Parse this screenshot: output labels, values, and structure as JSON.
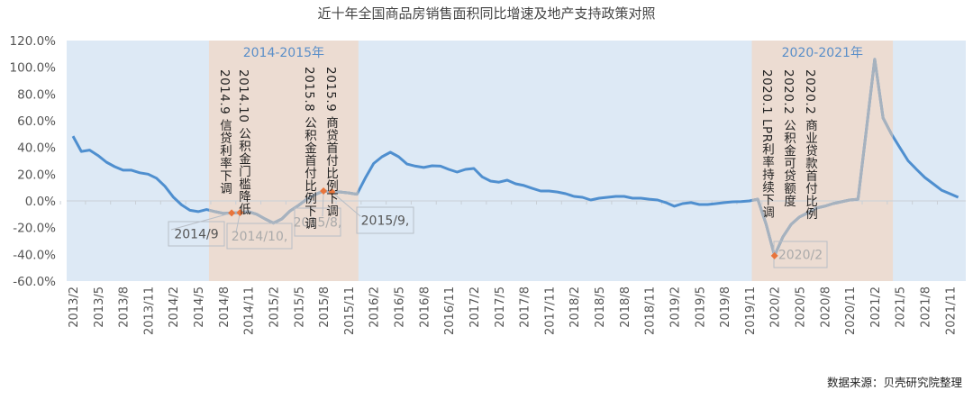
{
  "chart_data": {
    "type": "line",
    "title": "近十年全国商品房销售面积同比增速及地产支持政策对照",
    "ylim": [
      -60,
      120
    ],
    "ytick_step": 20,
    "ytick_format": "percent_1dp",
    "grid": false,
    "x": [
      "2013/2",
      "2013/3",
      "2013/4",
      "2013/5",
      "2013/6",
      "2013/7",
      "2013/8",
      "2013/9",
      "2013/10",
      "2013/11",
      "2013/12",
      "2014/1",
      "2014/2",
      "2014/3",
      "2014/4",
      "2014/5",
      "2014/6",
      "2014/7",
      "2014/8",
      "2014/9",
      "2014/10",
      "2014/11",
      "2014/12",
      "2015/1",
      "2015/2",
      "2015/3",
      "2015/4",
      "2015/5",
      "2015/6",
      "2015/7",
      "2015/8",
      "2015/9",
      "2015/10",
      "2015/11",
      "2015/12",
      "2016/1",
      "2016/2",
      "2016/3",
      "2016/4",
      "2016/5",
      "2016/6",
      "2016/7",
      "2016/8",
      "2016/9",
      "2016/10",
      "2016/11",
      "2016/12",
      "2017/1",
      "2017/2",
      "2017/3",
      "2017/4",
      "2017/5",
      "2017/6",
      "2017/7",
      "2017/8",
      "2017/9",
      "2017/10",
      "2017/11",
      "2017/12",
      "2018/1",
      "2018/2",
      "2018/3",
      "2018/4",
      "2018/5",
      "2018/6",
      "2018/7",
      "2018/8",
      "2018/9",
      "2018/10",
      "2018/11",
      "2018/12",
      "2019/1",
      "2019/2",
      "2019/3",
      "2019/4",
      "2019/5",
      "2019/6",
      "2019/7",
      "2019/8",
      "2019/9",
      "2019/10",
      "2019/11",
      "2019/12",
      "2020/1",
      "2020/2",
      "2020/3",
      "2020/4",
      "2020/5",
      "2020/6",
      "2020/7",
      "2020/8",
      "2020/9",
      "2020/10",
      "2020/11",
      "2020/12",
      "2021/1",
      "2021/2",
      "2021/3",
      "2021/4",
      "2021/5",
      "2021/6",
      "2021/7",
      "2021/8",
      "2021/9",
      "2021/10",
      "2021/11",
      "2021/12"
    ],
    "xtick_every": 3,
    "series": [
      {
        "color": "#4f8fcf",
        "values": [
          48.5,
          37,
          38,
          34,
          29,
          25.6,
          23,
          23,
          21,
          20,
          17,
          11,
          3,
          -3,
          -7,
          -8,
          -6.5,
          -8,
          -9.4,
          -9,
          -8.8,
          -8,
          -10,
          -13.5,
          -16.6,
          -13.5,
          -7.5,
          -3.4,
          1.3,
          4.7,
          7.4,
          6.7,
          6.7,
          6,
          5,
          17,
          28,
          33,
          36.4,
          33,
          27.6,
          26,
          25,
          26.3,
          26,
          23.6,
          21.6,
          23.6,
          24.3,
          18,
          14.8,
          14,
          15.5,
          12.8,
          11.5,
          9.4,
          7.4,
          7.4,
          6.7,
          5.4,
          3.4,
          2.7,
          0.7,
          2,
          2.7,
          3.4,
          3.4,
          2,
          2,
          1.3,
          0.7,
          -1.3,
          -4,
          -2,
          -1.3,
          -2.7,
          -2.7,
          -2,
          -1.3,
          -0.7,
          -0.5,
          0,
          1.3,
          -17.5,
          -41,
          -27,
          -17.5,
          -12,
          -8.8,
          -5.4,
          -4,
          -2,
          -0.7,
          0.7,
          1.3,
          53,
          106,
          62,
          50,
          40,
          30,
          23.6,
          17.5,
          12.8,
          8,
          5.4,
          2.7
        ]
      }
    ],
    "highlight_color": "#a7b2be",
    "bands": [
      {
        "label": "2014-2015年",
        "from": "2014/7",
        "to": "2015/12",
        "color": "#ecdcd2"
      },
      {
        "label": "2020-2021年",
        "from": "2019/12",
        "to": "2021/4",
        "color": "#ecdcd2"
      }
    ],
    "plot_background": "#dde9f5",
    "markers": [
      {
        "x": "2014/9",
        "label": "2014/9",
        "label_color": "#555"
      },
      {
        "x": "2014/10",
        "label": "2014/10,",
        "label_color": "#aaa"
      },
      {
        "x": "2015/8",
        "label": "2015/8,",
        "label_color": "#aaa"
      },
      {
        "x": "2015/9",
        "label": "2015/9,",
        "label_color": "#555"
      },
      {
        "x": "2020/2",
        "label": "2020/2",
        "label_color": "#aaa"
      }
    ],
    "marker_color": "#e8743b",
    "annotations": [
      "2014.9 信贷利率下调",
      "2014.10 公积金门槛降低",
      "2015.8 公积金首付比例下调",
      "2015.9 商贷首付比例下调",
      "2020.1 LPR利率持续下调",
      "2020.2 公积金可贷额度",
      "2020.2 商业贷款首付比例"
    ],
    "source": "数据来源：贝壳研究院整理"
  }
}
